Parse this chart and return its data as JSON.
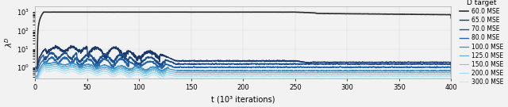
{
  "xlabel": "t (10³ iterations)",
  "ylabel": "λD",
  "xlim": [
    0,
    400
  ],
  "x_ticks": [
    0,
    50,
    100,
    150,
    200,
    250,
    300,
    350,
    400
  ],
  "legend_title": "D target",
  "series": [
    {
      "label": "60.0 MSE",
      "color": "#2c2c2c",
      "lw": 1.2
    },
    {
      "label": "65.0 MSE",
      "color": "#1a3a6b",
      "lw": 1.0
    },
    {
      "label": "70.0 MSE",
      "color": "#1e4f8c",
      "lw": 1.0
    },
    {
      "label": "80.0 MSE",
      "color": "#2166ac",
      "lw": 1.0
    },
    {
      "label": "100.0 MSE",
      "color": "#3d8ec4",
      "lw": 0.9
    },
    {
      "label": "125.0 MSE",
      "color": "#6baed6",
      "lw": 0.9
    },
    {
      "label": "150.0 MSE",
      "color": "#7ec8e3",
      "lw": 0.8
    },
    {
      "label": "200.0 MSE",
      "color": "#a0d8ef",
      "lw": 0.8
    },
    {
      "label": "300.0 MSE",
      "color": "#c6e8f5",
      "lw": 0.8
    }
  ],
  "background_color": "#f2f2f2",
  "figsize": [
    6.4,
    1.35
  ],
  "dpi": 100
}
